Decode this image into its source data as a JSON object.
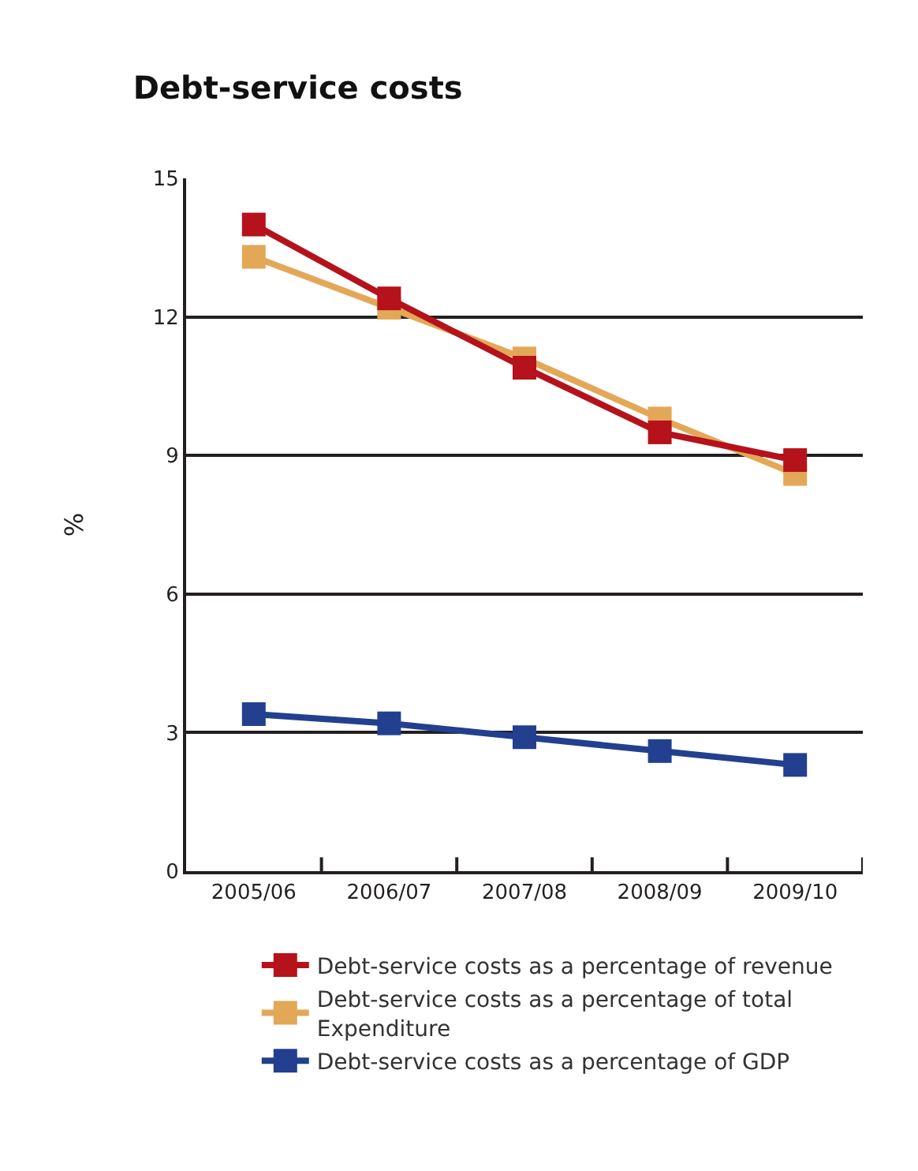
{
  "chart_data": {
    "type": "line",
    "title": "Debt-service costs",
    "ylabel": "%",
    "categories": [
      "2005/06",
      "2006/07",
      "2007/08",
      "2008/09",
      "2009/10"
    ],
    "series": [
      {
        "name": "Debt-service costs as a percentage of revenue",
        "color": "#b5121b",
        "values": [
          14.0,
          12.4,
          10.9,
          9.5,
          8.9
        ]
      },
      {
        "name": "Debt-service costs as a percentage of total Expenditure",
        "color": "#e3a857",
        "values": [
          13.3,
          12.2,
          11.1,
          9.8,
          8.6
        ]
      },
      {
        "name": "Debt-service costs as a percentage of GDP",
        "color": "#233f8f",
        "values": [
          3.4,
          3.2,
          2.9,
          2.6,
          2.3
        ]
      }
    ],
    "ylim": [
      0,
      15
    ],
    "yticks": [
      0,
      3,
      6,
      9,
      12,
      15
    ],
    "grid": "y",
    "legend": "bottom",
    "marker": "square",
    "line_style": "solid"
  }
}
